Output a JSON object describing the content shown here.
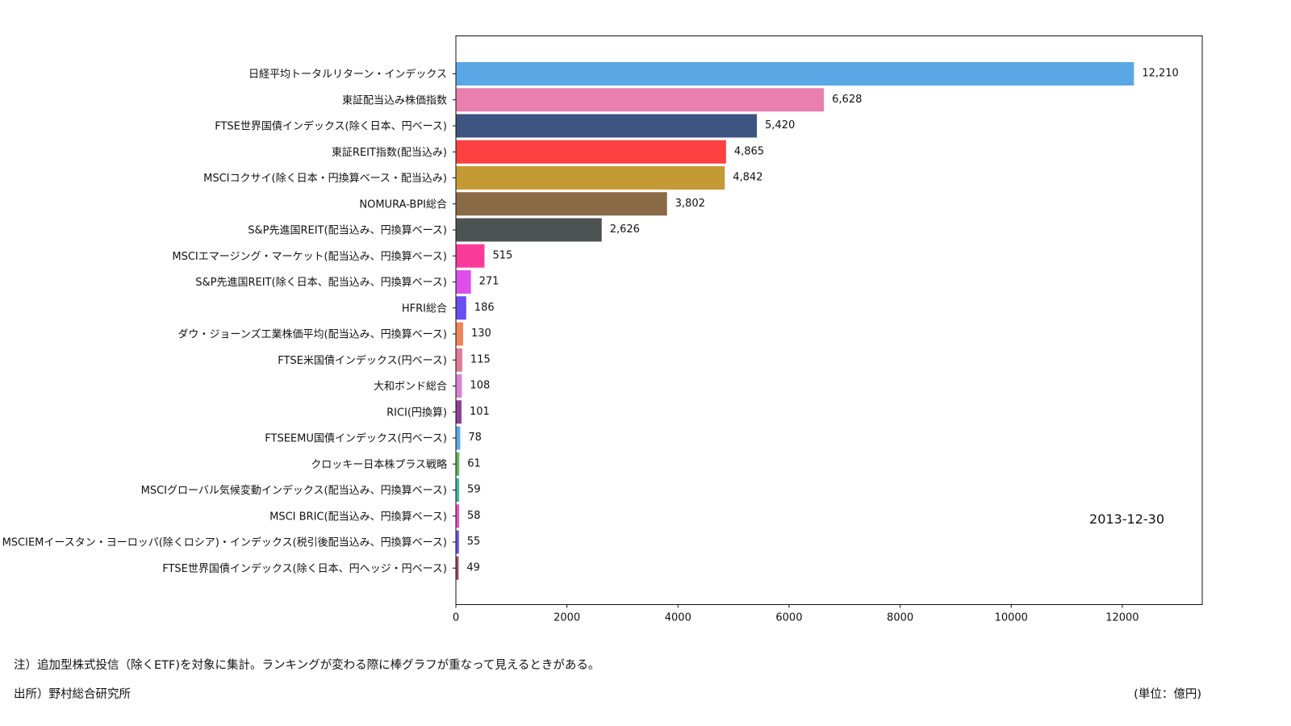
{
  "chart_data": {
    "type": "bar",
    "orientation": "horizontal",
    "date_label": "2013-12-30",
    "xlim": [
      0,
      13440
    ],
    "xticks": [
      0,
      2000,
      4000,
      6000,
      8000,
      10000,
      12000
    ],
    "grid": false,
    "categories": [
      "日経平均トータルリターン・インデックス",
      "東証配当込み株価指数",
      "FTSE世界国債インデックス(除く日本、円ベース)",
      "東証REIT指数(配当込み)",
      "MSCIコクサイ(除く日本・円換算ベース・配当込み)",
      "NOMURA-BPI総合",
      "S&P先進国REIT(配当込み、円換算ベース)",
      "MSCIエマージング・マーケット(配当込み、円換算ベース)",
      "S&P先進国REIT(除く日本、配当込み、円換算ベース)",
      "HFRI総合",
      "ダウ・ジョーンズ工業株価平均(配当込み、円換算ベース)",
      "FTSE米国債インデックス(円ベース)",
      "大和ボンド総合",
      "RICI(円換算)",
      "FTSEEMU国債インデックス(円ベース)",
      "クロッキー日本株プラス戦略",
      "MSCIグローバル気候変動インデックス(配当込み、円換算ベース)",
      "MSCI BRIC(配当込み、円換算ベース)",
      "MSCIEMイースタン・ヨーロッパ(除くロシア)・インデックス(税引後配当込み、円換算ベース)",
      "FTSE世界国債インデックス(除く日本、円ヘッジ・円ベース)"
    ],
    "values": [
      12210,
      6628,
      5420,
      4865,
      4842,
      3802,
      2626,
      515,
      271,
      186,
      130,
      115,
      108,
      101,
      78,
      61,
      59,
      58,
      55,
      49
    ],
    "value_labels": [
      "12,210",
      "6,628",
      "5,420",
      "4,865",
      "4,842",
      "3,802",
      "2,626",
      "515",
      "271",
      "186",
      "130",
      "115",
      "108",
      "101",
      "78",
      "61",
      "59",
      "58",
      "55",
      "49"
    ],
    "colors": [
      "#5aa7e6",
      "#e87fae",
      "#3d5580",
      "#fb4141",
      "#c49a35",
      "#8a6a45",
      "#4d5353",
      "#fb3b9a",
      "#dd4fe8",
      "#6a4ef0",
      "#ee8558",
      "#e07c98",
      "#d882d5",
      "#8e3f97",
      "#5aa7e6",
      "#5cb85c",
      "#3fb8a0",
      "#e84fc5",
      "#6b55e8",
      "#9a4a58"
    ]
  },
  "notes": {
    "note": "注）追加型株式投信（除くETF)を対象に集計。ランキングが変わる際に棒グラフが重なって見えるときがある。",
    "source": "出所）野村総合研究所",
    "unit": "(単位：億円)"
  }
}
